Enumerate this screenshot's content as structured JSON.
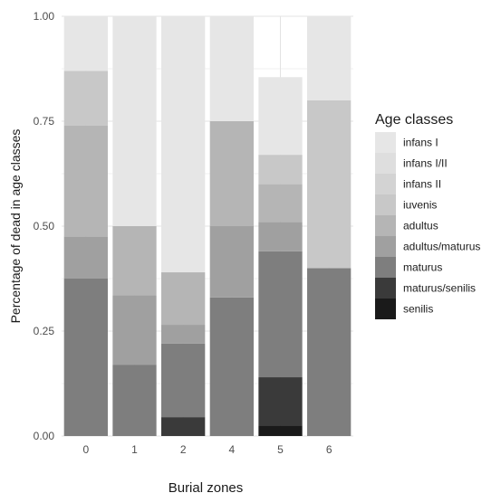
{
  "chart_data": {
    "type": "bar",
    "stacked": true,
    "normalized": true,
    "xlabel": "Burial zones",
    "ylabel": "Percentage of dead in age classes",
    "categories": [
      "0",
      "1",
      "2",
      "4",
      "5",
      "6"
    ],
    "ylim": [
      0,
      1
    ],
    "yticks": [
      "0.00",
      "0.25",
      "0.50",
      "0.75",
      "1.00"
    ],
    "legend": {
      "title": "Age classes",
      "placement": "right"
    },
    "series": [
      {
        "name": "infans I",
        "color": "#e6e6e6",
        "values": [
          0.13,
          0.5,
          0.61,
          0.25,
          0.185,
          0.2
        ]
      },
      {
        "name": "infans I/II",
        "color": "#dedede",
        "values": [
          0,
          0,
          0,
          0,
          0,
          0
        ]
      },
      {
        "name": "infans II",
        "color": "#d3d3d3",
        "values": [
          0,
          0,
          0,
          0,
          0,
          0
        ]
      },
      {
        "name": "iuvenis",
        "color": "#c8c8c8",
        "values": [
          0.13,
          0,
          0,
          0,
          0.07,
          0.4
        ]
      },
      {
        "name": "adultus",
        "color": "#b5b5b5",
        "values": [
          0.265,
          0.165,
          0.125,
          0.25,
          0.09,
          0
        ]
      },
      {
        "name": "adultus/maturus",
        "color": "#a0a0a0",
        "values": [
          0.1,
          0.165,
          0.045,
          0.17,
          0.07,
          0
        ]
      },
      {
        "name": "maturus",
        "color": "#7e7e7e",
        "values": [
          0.375,
          0.17,
          0.175,
          0.33,
          0.3,
          0.4
        ]
      },
      {
        "name": "maturus/senilis",
        "color": "#3a3a3a",
        "values": [
          0,
          0,
          0.045,
          0,
          0.115,
          0
        ]
      },
      {
        "name": "senilis",
        "color": "#1a1a1a",
        "values": [
          0,
          0,
          0,
          0,
          0.025,
          0
        ]
      }
    ],
    "grid": true
  }
}
